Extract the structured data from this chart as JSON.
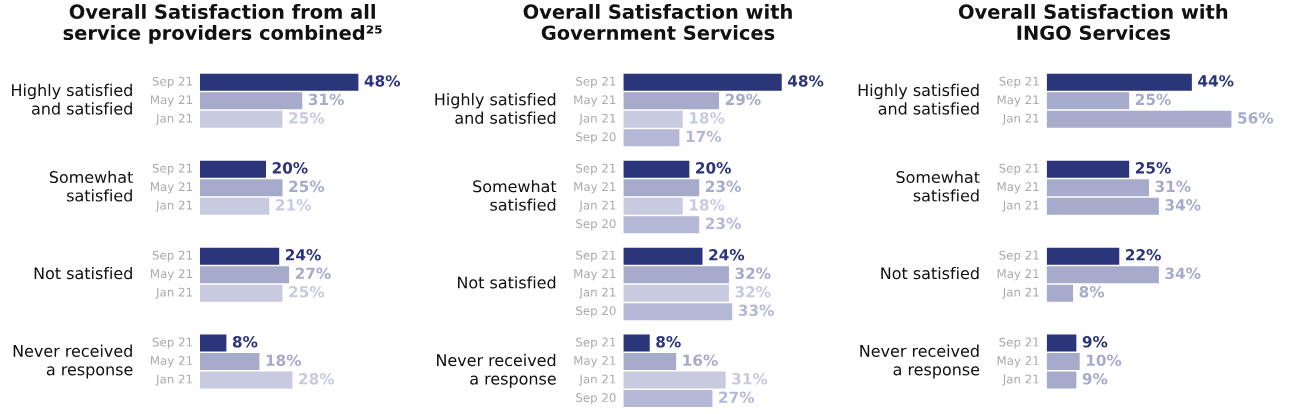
{
  "chart_data": [
    {
      "type": "bar",
      "orientation": "horizontal",
      "title": "Overall Satisfaction from all\nservice providers combined²⁵",
      "categories": [
        "Highly satisfied\nand satisfied",
        "Somewhat\nsatisfied",
        "Not satisfied",
        "Never received\na response"
      ],
      "legend": false,
      "series": [
        {
          "name": "Sep 21",
          "color": "#2b3579",
          "values": [
            48,
            20,
            24,
            8
          ],
          "value_labels": [
            "48%",
            "20%",
            "24%",
            "8%"
          ]
        },
        {
          "name": "May 21",
          "color": "#a7abcb",
          "values": [
            31,
            25,
            27,
            18
          ],
          "value_labels": [
            "31%",
            "25%",
            "27%",
            "18%"
          ]
        },
        {
          "name": "Jan 21",
          "color": "#c8cae0",
          "values": [
            25,
            21,
            25,
            28
          ],
          "value_labels": [
            "25%",
            "21%",
            "25%",
            "28%"
          ]
        }
      ]
    },
    {
      "type": "bar",
      "orientation": "horizontal",
      "title": "Overall Satisfaction with\nGovernment Services",
      "categories": [
        "Highly satisfied\nand satisfied",
        "Somewhat\nsatisfied",
        "Not satisfied",
        "Never received\na response"
      ],
      "legend": false,
      "series": [
        {
          "name": "Sep 21",
          "color": "#2b3579",
          "values": [
            48,
            20,
            24,
            8
          ],
          "value_labels": [
            "48%",
            "20%",
            "24%",
            "8%"
          ]
        },
        {
          "name": "May 21",
          "color": "#a7abcb",
          "values": [
            29,
            23,
            32,
            16
          ],
          "value_labels": [
            "29%",
            "23%",
            "32%",
            "16%"
          ]
        },
        {
          "name": "Jan 21",
          "color": "#c8cae0",
          "values": [
            18,
            18,
            32,
            31
          ],
          "value_labels": [
            "18%",
            "18%",
            "32%",
            "31%"
          ]
        },
        {
          "name": "Sep 20",
          "color": "#b4b8d6",
          "values": [
            17,
            23,
            33,
            27
          ],
          "value_labels": [
            "17%",
            "23%",
            "33%",
            "27%"
          ]
        }
      ]
    },
    {
      "type": "bar",
      "orientation": "horizontal",
      "title": "Overall Satisfaction with\nINGO Services",
      "categories": [
        "Highly satisfied\nand satisfied",
        "Somewhat\nsatisfied",
        "Not satisfied",
        "Never received\na response"
      ],
      "legend": false,
      "series": [
        {
          "name": "Sep 21",
          "color": "#2b3579",
          "values": [
            44,
            25,
            22,
            9
          ],
          "value_labels": [
            "44%",
            "25%",
            "22%",
            "9%"
          ]
        },
        {
          "name": "May 21",
          "color": "#a7abcb",
          "values": [
            25,
            31,
            34,
            10
          ],
          "value_labels": [
            "25%",
            "31%",
            "34%",
            "10%"
          ]
        },
        {
          "name": "Jan 21",
          "color": "#a7abcb",
          "values": [
            56,
            34,
            8,
            9
          ],
          "value_labels": [
            "56%",
            "34%",
            "8%",
            "9%"
          ]
        }
      ]
    }
  ]
}
